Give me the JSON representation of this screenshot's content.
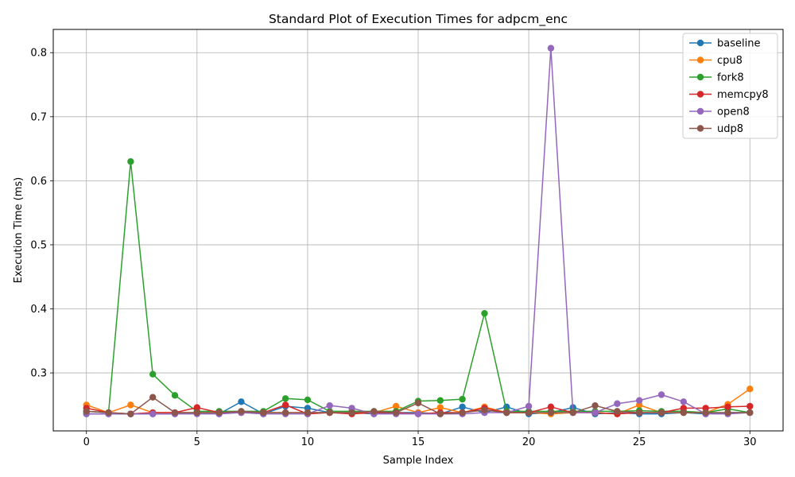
{
  "chart_data": {
    "type": "line",
    "title": "Standard Plot of Execution Times for adpcm_enc",
    "xlabel": "Sample Index",
    "ylabel": "Execution Time (ms)",
    "xlim": [
      -1.5,
      31.5
    ],
    "ylim": [
      0.2095,
      0.8363
    ],
    "x_ticks": [
      0,
      5,
      10,
      15,
      20,
      25,
      30
    ],
    "y_ticks": [
      0.3,
      0.4,
      0.5,
      0.6,
      0.7,
      0.8
    ],
    "x_tick_labels": [
      "0",
      "5",
      "10",
      "15",
      "20",
      "25",
      "30"
    ],
    "y_tick_labels": [
      "0.3",
      "0.4",
      "0.5",
      "0.6",
      "0.7",
      "0.8"
    ],
    "grid": true,
    "legend_position": "top-right",
    "x": [
      0,
      1,
      2,
      3,
      4,
      5,
      6,
      7,
      8,
      9,
      10,
      11,
      12,
      13,
      14,
      15,
      16,
      17,
      18,
      19,
      20,
      21,
      22,
      23,
      24,
      25,
      26,
      27,
      28,
      29,
      30
    ],
    "series": [
      {
        "name": "baseline",
        "color": "#1f77b4",
        "values": [
          0.236,
          0.236,
          0.236,
          0.236,
          0.236,
          0.238,
          0.236,
          0.255,
          0.236,
          0.248,
          0.245,
          0.238,
          0.238,
          0.236,
          0.238,
          0.238,
          0.236,
          0.247,
          0.238,
          0.247,
          0.236,
          0.238,
          0.246,
          0.236,
          0.238,
          0.236,
          0.236,
          0.238,
          0.236,
          0.238,
          0.238
        ]
      },
      {
        "name": "cpu8",
        "color": "#ff7f0e",
        "values": [
          0.25,
          0.238,
          0.25,
          0.238,
          0.238,
          0.238,
          0.238,
          0.238,
          0.238,
          0.238,
          0.238,
          0.238,
          0.238,
          0.238,
          0.248,
          0.238,
          0.246,
          0.238,
          0.247,
          0.238,
          0.238,
          0.236,
          0.238,
          0.238,
          0.236,
          0.25,
          0.238,
          0.238,
          0.238,
          0.251,
          0.275
        ]
      },
      {
        "name": "fork8",
        "color": "#2ca02c",
        "values": [
          0.24,
          0.238,
          0.63,
          0.298,
          0.265,
          0.24,
          0.24,
          0.24,
          0.24,
          0.26,
          0.258,
          0.24,
          0.24,
          0.24,
          0.24,
          0.256,
          0.257,
          0.259,
          0.393,
          0.24,
          0.24,
          0.24,
          0.24,
          0.24,
          0.24,
          0.241,
          0.24,
          0.24,
          0.238,
          0.244,
          0.238
        ]
      },
      {
        "name": "memcpy8",
        "color": "#d62728",
        "values": [
          0.245,
          0.238,
          0.236,
          0.238,
          0.238,
          0.246,
          0.238,
          0.238,
          0.238,
          0.25,
          0.236,
          0.238,
          0.236,
          0.238,
          0.238,
          0.236,
          0.238,
          0.238,
          0.245,
          0.238,
          0.238,
          0.247,
          0.238,
          0.238,
          0.236,
          0.238,
          0.238,
          0.245,
          0.245,
          0.247,
          0.248
        ]
      },
      {
        "name": "open8",
        "color": "#9467bd",
        "values": [
          0.236,
          0.236,
          0.236,
          0.236,
          0.236,
          0.236,
          0.236,
          0.238,
          0.236,
          0.236,
          0.236,
          0.249,
          0.245,
          0.236,
          0.236,
          0.236,
          0.236,
          0.236,
          0.238,
          0.238,
          0.248,
          0.807,
          0.238,
          0.238,
          0.252,
          0.257,
          0.266,
          0.255,
          0.236,
          0.236,
          0.238
        ]
      },
      {
        "name": "udp8",
        "color": "#8c564b",
        "values": [
          0.24,
          0.238,
          0.236,
          0.262,
          0.238,
          0.238,
          0.238,
          0.24,
          0.238,
          0.238,
          0.238,
          0.238,
          0.238,
          0.24,
          0.238,
          0.253,
          0.236,
          0.238,
          0.242,
          0.238,
          0.238,
          0.238,
          0.238,
          0.249,
          0.24,
          0.238,
          0.238,
          0.238,
          0.238,
          0.238,
          0.238
        ]
      }
    ]
  }
}
